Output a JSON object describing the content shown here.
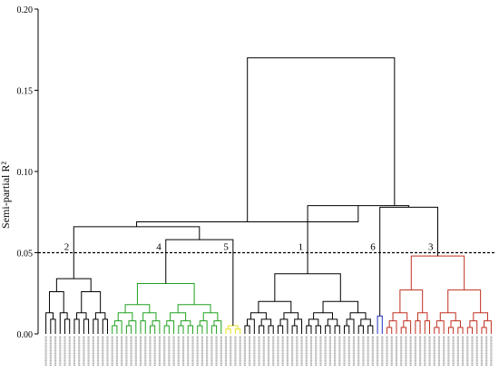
{
  "chart_data": {
    "type": "dendrogram",
    "title": "",
    "ylabel": "Semi-partial R²",
    "xlabel": "",
    "ylim": [
      0,
      0.2
    ],
    "yticks": [
      "0.00",
      "0.05",
      "0.10",
      "0.15",
      "0.20"
    ],
    "yticks_values": [
      0,
      0.05,
      0.1,
      0.15,
      0.2
    ],
    "cut_height": 0.05,
    "leaf_count": 95,
    "cluster_labels": [
      "1",
      "2",
      "3",
      "4",
      "5",
      "6"
    ],
    "cluster_colors": {
      "black": "#000000",
      "green": "#20a020",
      "yellow": "#e8e020",
      "blue": "#2030c0",
      "red": "#c03020"
    },
    "clusters": [
      {
        "label": "2",
        "color_key": "black",
        "leaves": 14,
        "height": 0.034,
        "sub_heights": [
          0.026,
          0.013,
          0.009,
          0.006,
          0.004
        ]
      },
      {
        "label": "4",
        "color_key": "green",
        "leaves": 24,
        "height": 0.031,
        "sub_heights": [
          0.018,
          0.013,
          0.008,
          0.005,
          0.003
        ]
      },
      {
        "label": "5",
        "color_key": "yellow",
        "leaves": 4,
        "height": 0.005,
        "sub_heights": [
          0.003
        ]
      },
      {
        "label": "1",
        "color_key": "black",
        "leaves": 28,
        "height": 0.037,
        "sub_heights": [
          0.02,
          0.013,
          0.009,
          0.005,
          0.003
        ]
      },
      {
        "label": "6",
        "color_key": "blue",
        "leaves": 2,
        "height": 0.011,
        "sub_heights": []
      },
      {
        "label": "3",
        "color_key": "red",
        "leaves": 23,
        "height": 0.048,
        "sub_heights": [
          0.027,
          0.013,
          0.008,
          0.004
        ]
      }
    ],
    "merges": {
      "clusters_4_5": 0.058,
      "clusters_2_45": 0.066,
      "clusters_6_3": 0.078,
      "clusters_1_63": 0.079,
      "left_right_upper": 0.069,
      "root": 0.17
    }
  }
}
